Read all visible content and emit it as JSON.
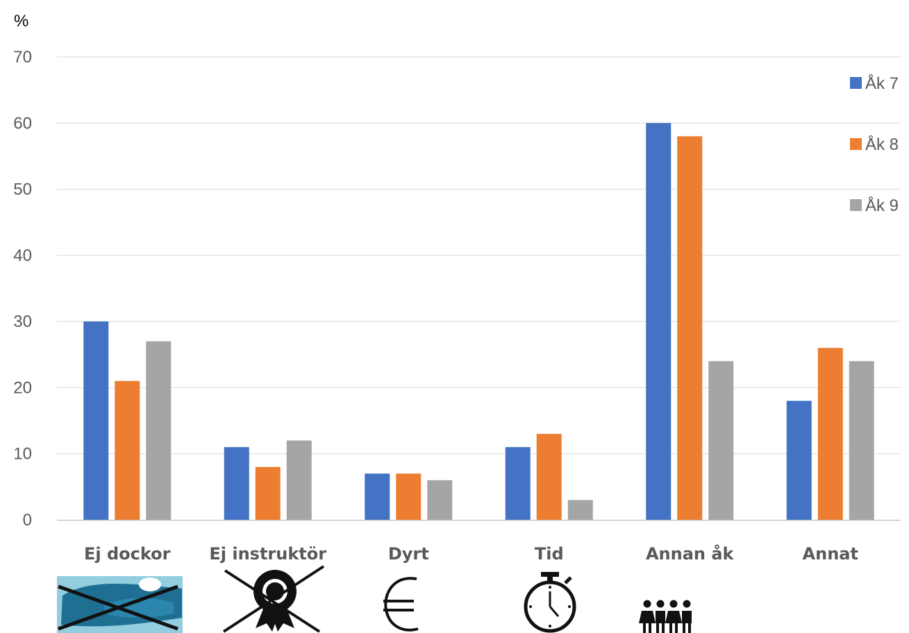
{
  "colors": {
    "s1": "#4472c4",
    "s2": "#ed7d31",
    "s3": "#a5a5a5"
  },
  "chart_data": {
    "type": "bar",
    "title": "",
    "xlabel": "",
    "ylabel": "%",
    "ylim": [
      0,
      70
    ],
    "yticks": [
      0,
      10,
      20,
      30,
      40,
      50,
      60,
      70
    ],
    "grid": true,
    "legend_position": "right",
    "categories": [
      "Ej dockor",
      "Ej instruktör",
      "Dyrt",
      "Tid",
      "Annan åk",
      "Annat"
    ],
    "category_icons": [
      "crossed-out-manikin-icon",
      "crossed-out-award-ribbon-icon",
      "euro-icon",
      "stopwatch-icon",
      "group-of-people-icon",
      ""
    ],
    "series": [
      {
        "name": "Åk 7",
        "color": "#4472c4",
        "values": [
          30,
          11,
          7,
          11,
          60,
          18
        ]
      },
      {
        "name": "Åk 8",
        "color": "#ed7d31",
        "values": [
          21,
          8,
          7,
          13,
          58,
          26
        ]
      },
      {
        "name": "Åk 9",
        "color": "#a5a5a5",
        "values": [
          27,
          12,
          6,
          3,
          24,
          24
        ]
      }
    ]
  }
}
